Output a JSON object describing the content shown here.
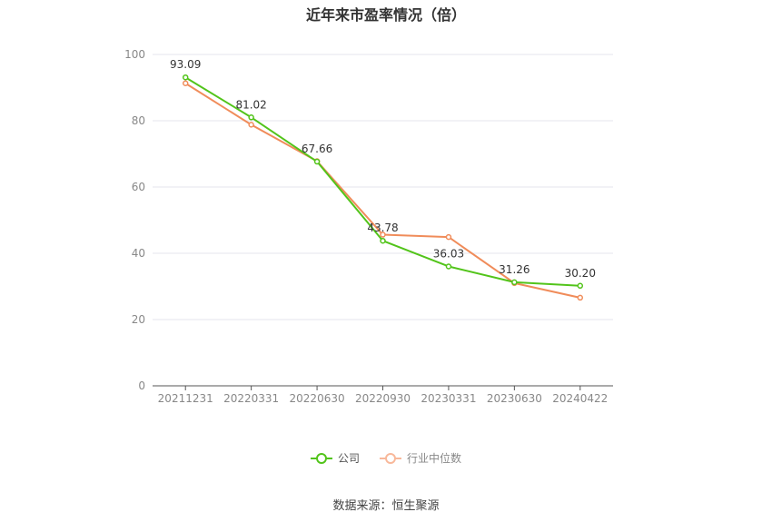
{
  "chart_data": {
    "type": "line",
    "title": "近年来市盈率情况（倍）",
    "categories": [
      "20211231",
      "20220331",
      "20220630",
      "20220930",
      "20230331",
      "20230630",
      "20240422"
    ],
    "ylim": [
      0,
      100
    ],
    "yticks": [
      0,
      20,
      40,
      60,
      80,
      100
    ],
    "grid": true,
    "legend_position": "bottom",
    "series": [
      {
        "name": "公司",
        "color": "#52c41a",
        "values": [
          93.09,
          81.02,
          67.66,
          43.78,
          36.03,
          31.26,
          30.2
        ],
        "labels": [
          "93.09",
          "81.02",
          "67.66",
          "43.78",
          "36.03",
          "31.26",
          "30.20"
        ]
      },
      {
        "name": "行业中位数",
        "color": "#f08c5a",
        "values": [
          91.3,
          78.8,
          67.8,
          45.6,
          44.9,
          31.0,
          26.6
        ]
      }
    ]
  },
  "source": "数据来源：恒生聚源"
}
